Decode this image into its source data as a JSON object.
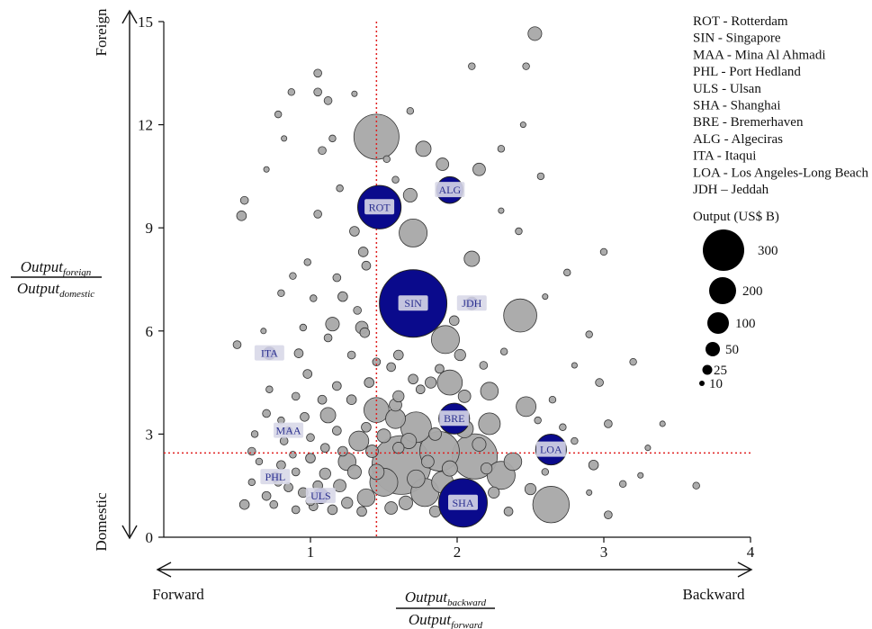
{
  "chart_data": {
    "type": "scatter",
    "subtype": "bubble",
    "x_range": [
      0,
      4
    ],
    "y_range": [
      0,
      15
    ],
    "x_ticks": [
      "1",
      "2",
      "3",
      "4"
    ],
    "y_ticks": [
      "0",
      "3",
      "6",
      "9",
      "12",
      "15"
    ],
    "grid": false,
    "xlabel": {
      "num_main": "Output",
      "num_sub": "backward",
      "den_main": "Output",
      "den_sub": "forward"
    },
    "ylabel": {
      "num_main": "Output",
      "num_sub": "foreign",
      "den_main": "Output",
      "den_sub": "domestic"
    },
    "x_arrow_left": "Forward",
    "x_arrow_right": "Backward",
    "y_arrow_top": "Foreign",
    "y_arrow_bottom": "Domestic",
    "reference_lines": {
      "x": 1.45,
      "y": 2.45,
      "color": "#e02020",
      "style": "dotted"
    },
    "colors": {
      "highlight": "#0a0a8c",
      "other": "#a8a8a8",
      "label_bg": "#d8d8e8",
      "label_text": "#2a2f8f"
    },
    "legend_ports": [
      "ROT - Rotterdam",
      "SIN - Singapore",
      "MAA - Mina Al Ahmadi",
      "PHL - Port Hedland",
      "ULS - Ulsan",
      "SHA - Shanghai",
      "BRE - Bremerhaven",
      "ALG - Algeciras",
      "ITA - Itaqui",
      "LOA - Los Angeles-Long Beach",
      "JDH – Jeddah"
    ],
    "size_legend": {
      "title": "Output (US$ B)",
      "values": [
        300,
        200,
        100,
        50,
        25,
        10
      ],
      "labels": [
        "300",
        "200",
        "100",
        "50",
        "25",
        "10"
      ]
    },
    "highlighted_ports": [
      {
        "code": "ROT",
        "x": 1.47,
        "y": 9.6,
        "output": 120
      },
      {
        "code": "SIN",
        "x": 1.7,
        "y": 6.8,
        "output": 290
      },
      {
        "code": "ALG",
        "x": 1.95,
        "y": 10.1,
        "output": 45
      },
      {
        "code": "JDH",
        "x": 2.1,
        "y": 6.8,
        "output": 10
      },
      {
        "code": "ITA",
        "x": 0.72,
        "y": 5.35,
        "output": 10
      },
      {
        "code": "MAA",
        "x": 0.85,
        "y": 3.1,
        "output": 4
      },
      {
        "code": "PHL",
        "x": 0.76,
        "y": 1.75,
        "output": 6
      },
      {
        "code": "ULS",
        "x": 1.07,
        "y": 1.2,
        "output": 15
      },
      {
        "code": "BRE",
        "x": 1.98,
        "y": 3.45,
        "output": 60
      },
      {
        "code": "LOA",
        "x": 2.64,
        "y": 2.55,
        "output": 60
      },
      {
        "code": "SHA",
        "x": 2.04,
        "y": 1.0,
        "output": 150
      }
    ],
    "other_ports": [
      {
        "x": 1.45,
        "y": 11.65,
        "output": 130
      },
      {
        "x": 1.77,
        "y": 11.3,
        "output": 15
      },
      {
        "x": 2.53,
        "y": 14.65,
        "output": 12
      },
      {
        "x": 1.68,
        "y": 9.95,
        "output": 12
      },
      {
        "x": 1.9,
        "y": 10.85,
        "output": 10
      },
      {
        "x": 1.7,
        "y": 8.85,
        "output": 50
      },
      {
        "x": 2.15,
        "y": 10.7,
        "output": 10
      },
      {
        "x": 2.1,
        "y": 8.1,
        "output": 15
      },
      {
        "x": 2.43,
        "y": 6.45,
        "output": 70
      },
      {
        "x": 1.92,
        "y": 5.75,
        "output": 50
      },
      {
        "x": 1.95,
        "y": 4.5,
        "output": 40
      },
      {
        "x": 2.22,
        "y": 4.25,
        "output": 20
      },
      {
        "x": 2.47,
        "y": 3.8,
        "output": 25
      },
      {
        "x": 2.22,
        "y": 3.3,
        "output": 30
      },
      {
        "x": 1.72,
        "y": 3.2,
        "output": 60
      },
      {
        "x": 1.45,
        "y": 3.7,
        "output": 40
      },
      {
        "x": 1.62,
        "y": 2.1,
        "output": 220
      },
      {
        "x": 1.88,
        "y": 2.5,
        "output": 100
      },
      {
        "x": 2.12,
        "y": 2.35,
        "output": 130
      },
      {
        "x": 2.3,
        "y": 1.8,
        "output": 50
      },
      {
        "x": 1.5,
        "y": 1.6,
        "output": 50
      },
      {
        "x": 1.78,
        "y": 1.3,
        "output": 50
      },
      {
        "x": 1.38,
        "y": 1.15,
        "output": 20
      },
      {
        "x": 2.64,
        "y": 0.95,
        "output": 85
      },
      {
        "x": 2.38,
        "y": 2.2,
        "output": 20
      },
      {
        "x": 1.33,
        "y": 2.8,
        "output": 25
      },
      {
        "x": 1.12,
        "y": 3.55,
        "output": 15
      },
      {
        "x": 1.58,
        "y": 3.45,
        "output": 25
      },
      {
        "x": 2.05,
        "y": 3.15,
        "output": 20
      },
      {
        "x": 1.25,
        "y": 2.2,
        "output": 20
      },
      {
        "x": 1.9,
        "y": 1.6,
        "output": 30
      },
      {
        "x": 2.5,
        "y": 1.4,
        "output": 8
      },
      {
        "x": 1.35,
        "y": 6.1,
        "output": 10
      },
      {
        "x": 1.15,
        "y": 6.2,
        "output": 12
      },
      {
        "x": 1.05,
        "y": 9.4,
        "output": 4
      },
      {
        "x": 0.53,
        "y": 9.35,
        "output": 6
      },
      {
        "x": 0.55,
        "y": 9.8,
        "output": 4
      },
      {
        "x": 1.36,
        "y": 8.3,
        "output": 6
      },
      {
        "x": 1.3,
        "y": 8.9,
        "output": 6
      },
      {
        "x": 1.22,
        "y": 7.0,
        "output": 6
      },
      {
        "x": 1.37,
        "y": 5.95,
        "output": 6
      },
      {
        "x": 1.6,
        "y": 5.3,
        "output": 6
      },
      {
        "x": 1.98,
        "y": 6.3,
        "output": 6
      },
      {
        "x": 2.02,
        "y": 5.3,
        "output": 8
      },
      {
        "x": 2.05,
        "y": 4.1,
        "output": 10
      },
      {
        "x": 1.82,
        "y": 4.5,
        "output": 8
      },
      {
        "x": 0.92,
        "y": 5.35,
        "output": 5
      },
      {
        "x": 0.98,
        "y": 4.75,
        "output": 5
      },
      {
        "x": 1.12,
        "y": 12.7,
        "output": 4
      },
      {
        "x": 1.05,
        "y": 13.5,
        "output": 4
      },
      {
        "x": 1.08,
        "y": 11.25,
        "output": 4
      },
      {
        "x": 1.05,
        "y": 12.95,
        "output": 4
      },
      {
        "x": 0.87,
        "y": 12.95,
        "output": 3
      },
      {
        "x": 0.78,
        "y": 12.3,
        "output": 3
      },
      {
        "x": 1.15,
        "y": 11.6,
        "output": 3
      },
      {
        "x": 1.2,
        "y": 10.15,
        "output": 3
      },
      {
        "x": 2.47,
        "y": 13.7,
        "output": 3
      },
      {
        "x": 2.1,
        "y": 13.7,
        "output": 3
      },
      {
        "x": 2.57,
        "y": 10.5,
        "output": 3
      },
      {
        "x": 3.0,
        "y": 8.3,
        "output": 3
      },
      {
        "x": 3.2,
        "y": 5.1,
        "output": 3
      },
      {
        "x": 2.97,
        "y": 4.5,
        "output": 4
      },
      {
        "x": 2.93,
        "y": 2.1,
        "output": 6
      },
      {
        "x": 3.03,
        "y": 3.3,
        "output": 4
      },
      {
        "x": 3.03,
        "y": 0.65,
        "output": 4
      },
      {
        "x": 3.13,
        "y": 1.55,
        "output": 3
      },
      {
        "x": 3.63,
        "y": 1.5,
        "output": 3
      },
      {
        "x": 0.5,
        "y": 5.6,
        "output": 4
      },
      {
        "x": 0.55,
        "y": 0.95,
        "output": 6
      },
      {
        "x": 0.6,
        "y": 2.5,
        "output": 4
      },
      {
        "x": 0.7,
        "y": 1.2,
        "output": 5
      },
      {
        "x": 0.85,
        "y": 1.45,
        "output": 5
      },
      {
        "x": 0.95,
        "y": 1.3,
        "output": 6
      },
      {
        "x": 0.8,
        "y": 2.1,
        "output": 5
      },
      {
        "x": 0.9,
        "y": 1.9,
        "output": 4
      },
      {
        "x": 1.0,
        "y": 2.3,
        "output": 6
      },
      {
        "x": 1.1,
        "y": 1.85,
        "output": 8
      },
      {
        "x": 1.2,
        "y": 1.5,
        "output": 10
      },
      {
        "x": 1.3,
        "y": 1.9,
        "output": 12
      },
      {
        "x": 1.42,
        "y": 2.5,
        "output": 10
      },
      {
        "x": 1.5,
        "y": 2.95,
        "output": 12
      },
      {
        "x": 1.67,
        "y": 2.8,
        "output": 15
      },
      {
        "x": 1.72,
        "y": 1.7,
        "output": 20
      },
      {
        "x": 1.85,
        "y": 3.0,
        "output": 10
      },
      {
        "x": 1.95,
        "y": 2.0,
        "output": 15
      },
      {
        "x": 2.15,
        "y": 2.7,
        "output": 12
      },
      {
        "x": 2.25,
        "y": 1.3,
        "output": 8
      },
      {
        "x": 1.6,
        "y": 4.1,
        "output": 8
      },
      {
        "x": 1.7,
        "y": 4.6,
        "output": 6
      },
      {
        "x": 1.4,
        "y": 4.5,
        "output": 6
      },
      {
        "x": 1.28,
        "y": 4.0,
        "output": 6
      },
      {
        "x": 1.18,
        "y": 4.4,
        "output": 5
      },
      {
        "x": 1.08,
        "y": 4.0,
        "output": 5
      },
      {
        "x": 0.96,
        "y": 3.5,
        "output": 5
      },
      {
        "x": 0.9,
        "y": 4.1,
        "output": 4
      },
      {
        "x": 0.82,
        "y": 2.8,
        "output": 4
      },
      {
        "x": 0.7,
        "y": 3.6,
        "output": 4
      },
      {
        "x": 0.65,
        "y": 2.2,
        "output": 3
      },
      {
        "x": 0.75,
        "y": 0.95,
        "output": 4
      },
      {
        "x": 0.9,
        "y": 0.8,
        "output": 4
      },
      {
        "x": 1.02,
        "y": 0.9,
        "output": 5
      },
      {
        "x": 1.15,
        "y": 0.8,
        "output": 6
      },
      {
        "x": 1.25,
        "y": 1.0,
        "output": 8
      },
      {
        "x": 1.35,
        "y": 0.75,
        "output": 6
      },
      {
        "x": 1.55,
        "y": 0.85,
        "output": 10
      },
      {
        "x": 1.65,
        "y": 1.0,
        "output": 12
      },
      {
        "x": 1.85,
        "y": 0.75,
        "output": 8
      },
      {
        "x": 2.35,
        "y": 0.75,
        "output": 5
      },
      {
        "x": 1.45,
        "y": 1.9,
        "output": 15
      },
      {
        "x": 1.58,
        "y": 3.85,
        "output": 10
      },
      {
        "x": 1.75,
        "y": 4.3,
        "output": 5
      },
      {
        "x": 1.88,
        "y": 4.9,
        "output": 5
      },
      {
        "x": 1.55,
        "y": 4.95,
        "output": 5
      },
      {
        "x": 1.28,
        "y": 5.3,
        "output": 4
      },
      {
        "x": 1.32,
        "y": 6.6,
        "output": 4
      },
      {
        "x": 1.18,
        "y": 7.55,
        "output": 4
      },
      {
        "x": 1.38,
        "y": 7.9,
        "output": 5
      },
      {
        "x": 1.02,
        "y": 6.95,
        "output": 3
      },
      {
        "x": 0.98,
        "y": 8.0,
        "output": 3
      },
      {
        "x": 0.88,
        "y": 7.6,
        "output": 3
      },
      {
        "x": 0.8,
        "y": 7.1,
        "output": 3
      },
      {
        "x": 0.95,
        "y": 6.1,
        "output": 3
      },
      {
        "x": 1.12,
        "y": 5.8,
        "output": 4
      },
      {
        "x": 1.45,
        "y": 5.1,
        "output": 4
      },
      {
        "x": 1.75,
        "y": 6.0,
        "output": 4
      },
      {
        "x": 2.18,
        "y": 5.0,
        "output": 4
      },
      {
        "x": 2.32,
        "y": 5.4,
        "output": 3
      },
      {
        "x": 2.65,
        "y": 4.0,
        "output": 3
      },
      {
        "x": 2.72,
        "y": 3.2,
        "output": 3
      },
      {
        "x": 2.8,
        "y": 2.8,
        "output": 3
      },
      {
        "x": 2.55,
        "y": 3.4,
        "output": 3
      },
      {
        "x": 2.6,
        "y": 1.9,
        "output": 3
      },
      {
        "x": 2.9,
        "y": 1.3,
        "output": 2
      },
      {
        "x": 3.3,
        "y": 2.6,
        "output": 2
      },
      {
        "x": 3.4,
        "y": 3.3,
        "output": 2
      },
      {
        "x": 3.25,
        "y": 1.8,
        "output": 2
      },
      {
        "x": 0.6,
        "y": 1.6,
        "output": 3
      },
      {
        "x": 0.62,
        "y": 3.0,
        "output": 3
      },
      {
        "x": 0.72,
        "y": 4.3,
        "output": 3
      },
      {
        "x": 0.8,
        "y": 3.4,
        "output": 3
      },
      {
        "x": 0.88,
        "y": 2.4,
        "output": 3
      },
      {
        "x": 1.0,
        "y": 2.9,
        "output": 4
      },
      {
        "x": 1.1,
        "y": 2.6,
        "output": 5
      },
      {
        "x": 1.18,
        "y": 3.1,
        "output": 5
      },
      {
        "x": 1.22,
        "y": 2.5,
        "output": 6
      },
      {
        "x": 1.38,
        "y": 3.2,
        "output": 6
      },
      {
        "x": 1.05,
        "y": 1.5,
        "output": 6
      },
      {
        "x": 0.78,
        "y": 1.6,
        "output": 4
      },
      {
        "x": 1.0,
        "y": 1.05,
        "output": 5
      },
      {
        "x": 1.6,
        "y": 2.6,
        "output": 8
      },
      {
        "x": 1.8,
        "y": 2.2,
        "output": 10
      },
      {
        "x": 2.0,
        "y": 1.35,
        "output": 8
      },
      {
        "x": 2.2,
        "y": 2.0,
        "output": 8
      },
      {
        "x": 1.52,
        "y": 6.9,
        "output": 4
      },
      {
        "x": 1.6,
        "y": 7.4,
        "output": 3
      },
      {
        "x": 1.42,
        "y": 9.8,
        "output": 3
      },
      {
        "x": 1.58,
        "y": 10.4,
        "output": 3
      },
      {
        "x": 1.52,
        "y": 11.0,
        "output": 3
      },
      {
        "x": 1.68,
        "y": 12.4,
        "output": 3
      },
      {
        "x": 1.3,
        "y": 12.9,
        "output": 2
      },
      {
        "x": 0.82,
        "y": 11.6,
        "output": 2
      },
      {
        "x": 0.7,
        "y": 10.7,
        "output": 2
      },
      {
        "x": 0.68,
        "y": 6.0,
        "output": 2
      },
      {
        "x": 2.3,
        "y": 9.5,
        "output": 2
      },
      {
        "x": 2.42,
        "y": 8.9,
        "output": 3
      },
      {
        "x": 2.75,
        "y": 7.7,
        "output": 3
      },
      {
        "x": 2.6,
        "y": 7.0,
        "output": 2
      },
      {
        "x": 2.9,
        "y": 5.9,
        "output": 3
      },
      {
        "x": 2.8,
        "y": 5.0,
        "output": 2
      },
      {
        "x": 2.3,
        "y": 11.3,
        "output": 3
      },
      {
        "x": 2.45,
        "y": 12.0,
        "output": 2
      }
    ]
  }
}
